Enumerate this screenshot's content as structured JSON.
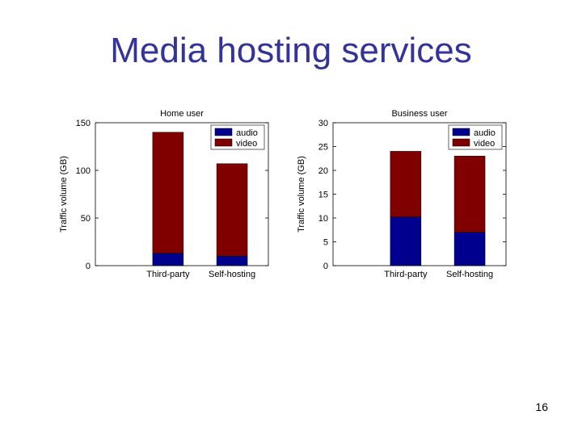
{
  "slide": {
    "title": "Media hosting services",
    "page_number": "16"
  },
  "colors": {
    "title": "#33339a",
    "audio": "#00008f",
    "video": "#800000"
  },
  "chart_data": [
    {
      "type": "bar",
      "stacked": true,
      "title": "Home user",
      "xlabel": "",
      "ylabel": "Traffic volume (GB)",
      "categories": [
        "Third-party",
        "Self-hosting"
      ],
      "series": [
        {
          "name": "audio",
          "values": [
            13,
            10
          ]
        },
        {
          "name": "video",
          "values": [
            127,
            97
          ]
        }
      ],
      "ylim": [
        0,
        150
      ],
      "yticks": [
        0,
        50,
        100,
        150
      ],
      "legend": "top-right",
      "grid": false
    },
    {
      "type": "bar",
      "stacked": true,
      "title": "Business user",
      "xlabel": "",
      "ylabel": "Traffic volume (GB)",
      "categories": [
        "Third-party",
        "Self-hosting"
      ],
      "series": [
        {
          "name": "audio",
          "values": [
            10.2,
            7
          ]
        },
        {
          "name": "video",
          "values": [
            13.8,
            16
          ]
        }
      ],
      "ylim": [
        0,
        30
      ],
      "yticks": [
        0,
        5,
        10,
        15,
        20,
        25,
        30
      ],
      "legend": "top-right",
      "grid": false
    }
  ]
}
